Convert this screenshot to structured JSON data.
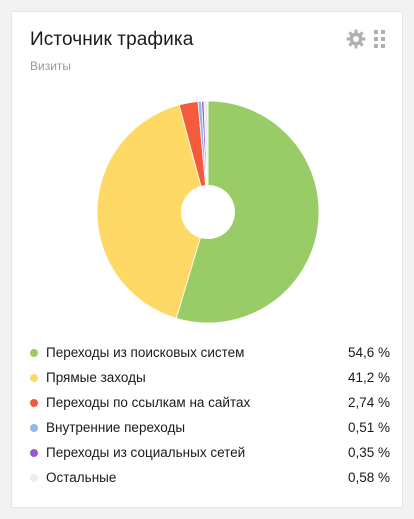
{
  "widget": {
    "title": "Источник трафика",
    "subtitle": "Визиты",
    "settings_icon": "gear-icon",
    "drag_icon": "drag-handle-icon"
  },
  "chart_data": {
    "type": "pie",
    "donut": true,
    "title": "Источник трафика",
    "subtitle": "Визиты",
    "categories": [
      "Переходы из поисковых систем",
      "Прямые заходы",
      "Переходы по ссылкам на сайтах",
      "Внутренние переходы",
      "Переходы из социальных сетей",
      "Остальные"
    ],
    "values": [
      54.6,
      41.2,
      2.74,
      0.51,
      0.35,
      0.58
    ],
    "value_labels": [
      "54,6 %",
      "41,2 %",
      "2,74 %",
      "0,51 %",
      "0,35 %",
      "0,58 %"
    ],
    "colors": [
      "#99cc66",
      "#ffd966",
      "#f55a3c",
      "#8fb8e6",
      "#a05ac8",
      "#ececec"
    ],
    "legend_position": "bottom"
  }
}
